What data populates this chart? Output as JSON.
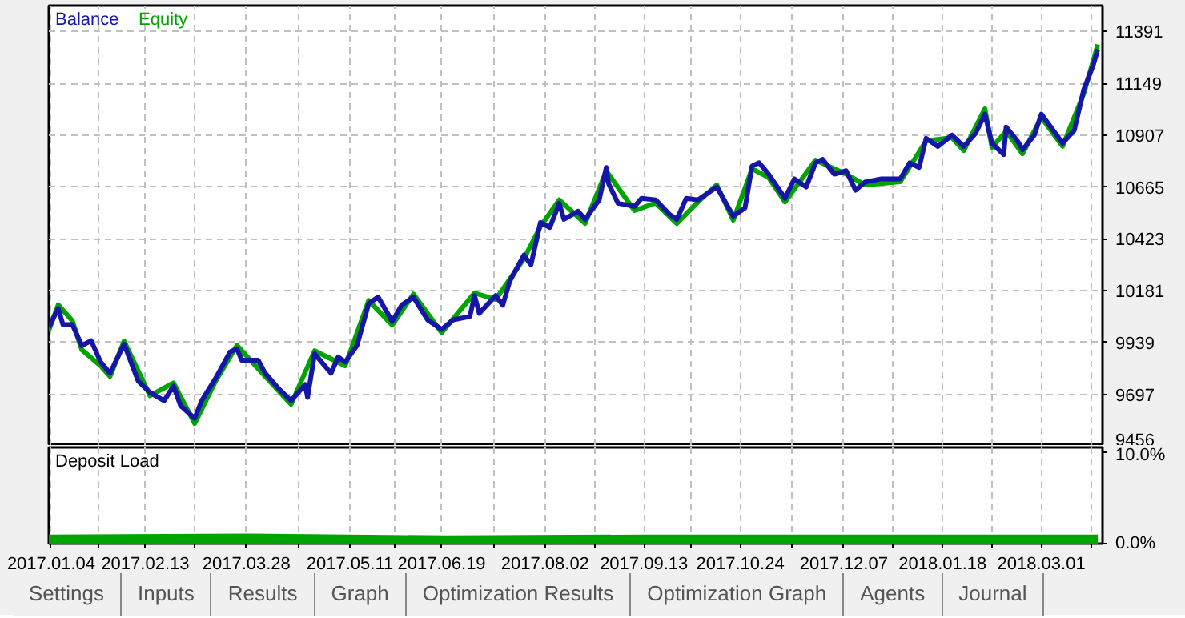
{
  "chart_data": [
    {
      "type": "line",
      "legend": "top left",
      "grid": true,
      "tick_labels": "y",
      "line_style": "solid",
      "xlim": [
        "2017-01-03",
        "2018-03-27"
      ],
      "ylim": [
        9456,
        11512
      ],
      "yticks": [
        9456,
        9697,
        9939,
        10181,
        10423,
        10665,
        10907,
        11149,
        11391
      ],
      "xticks": [
        {
          "value": "2017-01-04",
          "label": null
        },
        {
          "value": "2017-01-24",
          "label": null
        },
        {
          "value": "2017-02-13",
          "label": null
        },
        {
          "value": "2017-03-06",
          "label": null
        },
        {
          "value": "2017-03-28",
          "label": null
        },
        {
          "value": "2017-04-19",
          "label": null
        },
        {
          "value": "2017-05-11",
          "label": null
        },
        {
          "value": "2017-05-30",
          "label": null
        },
        {
          "value": "2017-06-19",
          "label": null
        },
        {
          "value": "2017-07-11",
          "label": null
        },
        {
          "value": "2017-08-02",
          "label": null
        },
        {
          "value": "2017-08-23",
          "label": null
        },
        {
          "value": "2017-09-13",
          "label": null
        },
        {
          "value": "2017-10-03",
          "label": null
        },
        {
          "value": "2017-10-24",
          "label": null
        },
        {
          "value": "2017-11-15",
          "label": null
        },
        {
          "value": "2017-12-07",
          "label": null
        },
        {
          "value": "2017-12-28",
          "label": null
        },
        {
          "value": "2018-01-18",
          "label": null
        },
        {
          "value": "2018-02-08",
          "label": null
        },
        {
          "value": "2018-03-01",
          "label": null
        },
        {
          "value": "2018-03-22",
          "label": null
        }
      ],
      "series": [
        {
          "name": "Balance",
          "color": "#1515a8",
          "x": [
            "2017-01-03",
            "2017-01-07",
            "2017-01-09",
            "2017-01-13",
            "2017-01-17",
            "2017-01-21",
            "2017-01-25",
            "2017-01-29",
            "2017-02-04",
            "2017-02-10",
            "2017-02-15",
            "2017-02-21",
            "2017-02-25",
            "2017-02-28",
            "2017-03-06",
            "2017-03-09",
            "2017-03-15",
            "2017-03-21",
            "2017-03-24",
            "2017-03-26",
            "2017-04-02",
            "2017-04-05",
            "2017-04-11",
            "2017-04-16",
            "2017-04-22",
            "2017-04-23",
            "2017-04-26",
            "2017-05-03",
            "2017-05-06",
            "2017-05-09",
            "2017-05-14",
            "2017-05-19",
            "2017-05-23",
            "2017-05-29",
            "2017-06-02",
            "2017-06-07",
            "2017-06-13",
            "2017-06-19",
            "2017-06-24",
            "2017-07-01",
            "2017-07-03",
            "2017-07-05",
            "2017-07-12",
            "2017-07-15",
            "2017-07-18",
            "2017-07-24",
            "2017-07-27",
            "2017-07-31",
            "2017-08-04",
            "2017-08-08",
            "2017-08-10",
            "2017-08-16",
            "2017-08-19",
            "2017-08-25",
            "2017-08-28",
            "2017-08-29",
            "2017-09-02",
            "2017-09-09",
            "2017-09-12",
            "2017-09-18",
            "2017-09-24",
            "2017-09-27",
            "2017-10-01",
            "2017-10-06",
            "2017-10-14",
            "2017-10-21",
            "2017-10-26",
            "2017-10-29",
            "2017-11-01",
            "2017-11-05",
            "2017-11-12",
            "2017-11-16",
            "2017-11-21",
            "2017-11-25",
            "2017-11-28",
            "2017-12-03",
            "2017-12-08",
            "2017-12-12",
            "2017-12-16",
            "2017-12-23",
            "2017-12-31",
            "2018-01-04",
            "2018-01-08",
            "2018-01-11",
            "2018-01-16",
            "2018-01-22",
            "2018-01-27",
            "2018-02-01",
            "2018-02-05",
            "2018-02-08",
            "2018-02-13",
            "2018-02-14",
            "2018-02-19",
            "2018-02-21",
            "2018-02-26",
            "2018-03-01",
            "2018-03-07",
            "2018-03-10",
            "2018-03-15",
            "2018-03-19",
            "2018-03-23",
            "2018-03-25"
          ],
          "values": [
            10009,
            10098,
            10022,
            10022,
            9924,
            9947,
            9848,
            9795,
            9931,
            9758,
            9705,
            9667,
            9735,
            9644,
            9584,
            9667,
            9773,
            9894,
            9909,
            9856,
            9856,
            9795,
            9720,
            9667,
            9742,
            9682,
            9886,
            9795,
            9871,
            9848,
            9924,
            10121,
            10151,
            10037,
            10113,
            10151,
            10045,
            10000,
            10045,
            10060,
            10158,
            10075,
            10158,
            10113,
            10226,
            10347,
            10302,
            10499,
            10476,
            10589,
            10514,
            10552,
            10514,
            10605,
            10756,
            10680,
            10589,
            10574,
            10612,
            10605,
            10536,
            10514,
            10612,
            10605,
            10665,
            10529,
            10567,
            10763,
            10778,
            10725,
            10612,
            10703,
            10665,
            10778,
            10794,
            10725,
            10741,
            10650,
            10688,
            10703,
            10703,
            10778,
            10756,
            10892,
            10854,
            10907,
            10854,
            10915,
            11005,
            10869,
            10816,
            10945,
            10877,
            10839,
            10907,
            11005,
            10915,
            10869,
            10930,
            11119,
            11232,
            11308
          ]
        },
        {
          "name": "Equity",
          "color": "#00a400",
          "x": [
            "2017-01-03",
            "2017-01-07",
            "2017-01-13",
            "2017-01-17",
            "2017-01-25",
            "2017-01-29",
            "2017-02-04",
            "2017-02-15",
            "2017-02-25",
            "2017-03-06",
            "2017-03-15",
            "2017-03-24",
            "2017-04-05",
            "2017-04-16",
            "2017-04-26",
            "2017-05-09",
            "2017-05-19",
            "2017-05-29",
            "2017-06-07",
            "2017-06-19",
            "2017-07-03",
            "2017-07-12",
            "2017-07-24",
            "2017-07-31",
            "2017-08-08",
            "2017-08-19",
            "2017-08-28",
            "2017-09-09",
            "2017-09-18",
            "2017-09-27",
            "2017-10-06",
            "2017-10-14",
            "2017-10-21",
            "2017-10-29",
            "2017-11-05",
            "2017-11-12",
            "2017-11-25",
            "2017-12-08",
            "2017-12-16",
            "2017-12-31",
            "2018-01-11",
            "2018-01-22",
            "2018-01-27",
            "2018-02-05",
            "2018-02-08",
            "2018-02-14",
            "2018-02-21",
            "2018-03-01",
            "2018-03-10",
            "2018-03-19",
            "2018-03-25"
          ],
          "values": [
            9995,
            10115,
            10040,
            9905,
            9830,
            9780,
            9945,
            9690,
            9750,
            9560,
            9760,
            9925,
            9780,
            9650,
            9900,
            9830,
            10135,
            10020,
            10165,
            9985,
            10170,
            10140,
            10330,
            10480,
            10605,
            10495,
            10740,
            10555,
            10590,
            10495,
            10595,
            10675,
            10510,
            10750,
            10710,
            10595,
            10790,
            10725,
            10675,
            10690,
            10880,
            10895,
            10835,
            11030,
            10850,
            10925,
            10820,
            10990,
            10855,
            11100,
            11330
          ]
        }
      ]
    },
    {
      "type": "area",
      "title": "Deposit Load",
      "grid": "x",
      "color": "#00a400",
      "xlim": [
        "2017-01-03",
        "2018-03-27"
      ],
      "ylim": [
        0,
        10.6
      ],
      "yticks": [
        {
          "value": 0,
          "label": "0.0%"
        },
        {
          "value": 10,
          "label": "10.0%"
        }
      ],
      "xticks": [
        {
          "value": "2017-01-04",
          "label": "2017.01.04"
        },
        {
          "value": "2017-01-24",
          "label": null
        },
        {
          "value": "2017-02-13",
          "label": "2017.02.13"
        },
        {
          "value": "2017-03-06",
          "label": null
        },
        {
          "value": "2017-03-28",
          "label": "2017.03.28"
        },
        {
          "value": "2017-04-19",
          "label": null
        },
        {
          "value": "2017-05-11",
          "label": "2017.05.11"
        },
        {
          "value": "2017-05-30",
          "label": null
        },
        {
          "value": "2017-06-19",
          "label": "2017.06.19"
        },
        {
          "value": "2017-07-11",
          "label": null
        },
        {
          "value": "2017-08-02",
          "label": "2017.08.02"
        },
        {
          "value": "2017-08-23",
          "label": null
        },
        {
          "value": "2017-09-13",
          "label": "2017.09.13"
        },
        {
          "value": "2017-10-03",
          "label": null
        },
        {
          "value": "2017-10-24",
          "label": "2017.10.24"
        },
        {
          "value": "2017-11-15",
          "label": null
        },
        {
          "value": "2017-12-07",
          "label": "2017.12.07"
        },
        {
          "value": "2017-12-28",
          "label": null
        },
        {
          "value": "2018-01-18",
          "label": "2018.01.18"
        },
        {
          "value": "2018-02-08",
          "label": null
        },
        {
          "value": "2018-03-01",
          "label": "2018.03.01"
        },
        {
          "value": "2018-03-22",
          "label": null
        }
      ],
      "x": [
        "2017-01-03",
        "2017-03-29",
        "2017-06-21",
        "2017-09-14",
        "2017-12-07",
        "2018-03-25"
      ],
      "values": [
        1.0,
        1.1,
        0.9,
        1.0,
        1.0,
        1.0
      ],
      "annotations": [
        "Settings",
        "Inputs",
        "Results",
        "Graph",
        "Optimization Results",
        "Optimization Graph",
        "Agents",
        "Journal"
      ]
    }
  ]
}
